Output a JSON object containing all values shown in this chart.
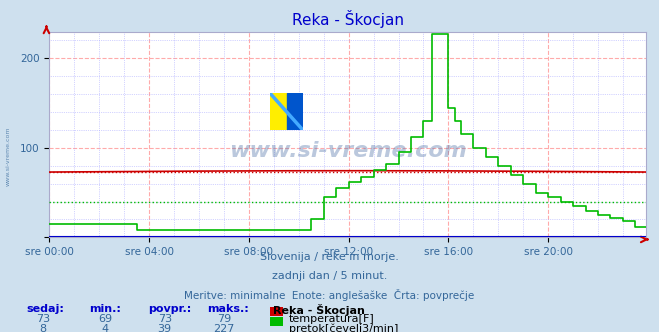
{
  "title": "Reka - Škocjan",
  "background_color": "#cee0ee",
  "plot_bg_color": "#ffffff",
  "x_labels": [
    "sre 00:00",
    "sre 04:00",
    "sre 08:00",
    "sre 12:00",
    "sre 16:00",
    "sre 20:00"
  ],
  "x_ticks_hours": [
    0,
    4,
    8,
    12,
    16,
    20
  ],
  "total_hours": 24,
  "total_points": 288,
  "ylim": [
    0,
    230
  ],
  "yticks": [
    0,
    100,
    200
  ],
  "temp_color": "#cc0000",
  "flow_color": "#00bb00",
  "height_color": "#0000cc",
  "temp_avg": 73,
  "flow_avg": 39,
  "subtitle1": "Slovenija / reke in morje.",
  "subtitle2": "zadnji dan / 5 minut.",
  "subtitle3": "Meritve: minimalne  Enote: anglešaške  Črta: povprečje",
  "legend_station": "Reka - Škocjan",
  "legend_temp": "temperatura[F]",
  "legend_flow": "pretok[čevelj3/min]",
  "table_headers": [
    "sedaj:",
    "min.:",
    "povpr.:",
    "maks.:"
  ],
  "table_temp": [
    73,
    69,
    73,
    79
  ],
  "table_flow": [
    8,
    4,
    39,
    227
  ],
  "watermark_text": "www.si-vreme.com",
  "left_label": "www.si-vreme.com",
  "grid_major_color": "#ffaaaa",
  "grid_minor_color": "#aaaaff",
  "tick_color": "#336699",
  "text_color": "#336699",
  "title_color": "#0000cc",
  "header_color": "#0000cc"
}
